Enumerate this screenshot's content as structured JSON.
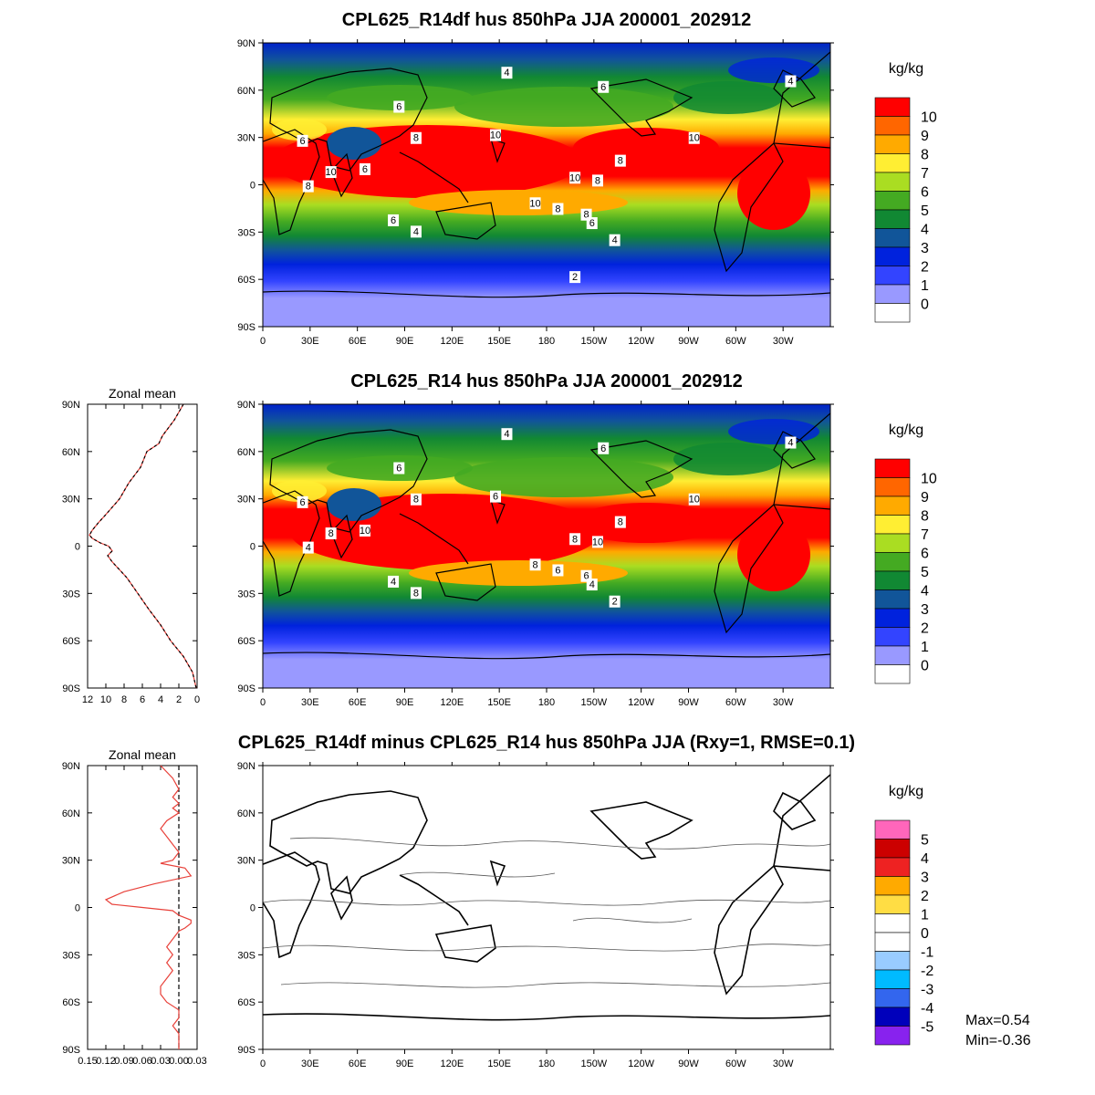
{
  "chart_data": [
    {
      "type": "heatmap",
      "title": "CPL625_R14df hus 850hPa JJA 200001_202912",
      "units": "kg/kg",
      "levels": [
        "10",
        "9",
        "8",
        "7",
        "6",
        "5",
        "4",
        "3",
        "2",
        "1",
        "0"
      ],
      "level_colors": [
        "#ff0000",
        "#ff6600",
        "#ffaa00",
        "#ffee33",
        "#aadd22",
        "#44aa22",
        "#118833",
        "#115599",
        "#0022dd",
        "#3344ff",
        "#9999ff",
        "#ffffff"
      ],
      "x_ticks": [
        "0",
        "30E",
        "60E",
        "90E",
        "120E",
        "150E",
        "180",
        "150W",
        "120W",
        "90W",
        "60W",
        "30W"
      ],
      "y_ticks": [
        "90N",
        "60N",
        "30N",
        "0",
        "30S",
        "60S",
        "90S"
      ],
      "contour_labels": [
        "4",
        "6",
        "4",
        "6",
        "6",
        "8",
        "10",
        "10",
        "8",
        "6",
        "10",
        "8",
        "10",
        "8",
        "8",
        "10",
        "8",
        "6",
        "4",
        "6",
        "4",
        "2"
      ]
    },
    {
      "type": "heatmap",
      "title": "CPL625_R14 hus 850hPa JJA 200001_202912",
      "units": "kg/kg",
      "levels": [
        "10",
        "9",
        "8",
        "7",
        "6",
        "5",
        "4",
        "3",
        "2",
        "1",
        "0"
      ],
      "level_colors": [
        "#ff0000",
        "#ff6600",
        "#ffaa00",
        "#ffee33",
        "#aadd22",
        "#44aa22",
        "#118833",
        "#115599",
        "#0022dd",
        "#3344ff",
        "#9999ff",
        "#ffffff"
      ],
      "x_ticks": [
        "0",
        "30E",
        "60E",
        "90E",
        "120E",
        "150E",
        "180",
        "150W",
        "120W",
        "90W",
        "60W",
        "30W"
      ],
      "y_ticks": [
        "90N",
        "60N",
        "30N",
        "0",
        "30S",
        "60S",
        "90S"
      ],
      "contour_labels": [
        "4",
        "6",
        "4",
        "6",
        "6",
        "8",
        "6",
        "10",
        "8",
        "10",
        "8",
        "10",
        "8",
        "6",
        "4",
        "8",
        "6",
        "4",
        "8",
        "4",
        "2"
      ],
      "zonal_mean": {
        "title": "Zonal mean",
        "x_ticks": [
          "12",
          "10",
          "8",
          "6",
          "4",
          "2",
          "0"
        ],
        "xlim": [
          12,
          0
        ],
        "y_ticks": [
          "90N",
          "60N",
          "30N",
          "0",
          "30S",
          "60S",
          "90S"
        ],
        "lat": [
          90,
          80,
          70,
          65,
          60,
          50,
          40,
          30,
          20,
          15,
          10,
          7,
          5,
          2,
          0,
          -3,
          -6,
          -10,
          -15,
          -20,
          -25,
          -30,
          -40,
          -50,
          -60,
          -70,
          -80,
          -90
        ],
        "value": [
          1.5,
          2.5,
          3.8,
          4.2,
          5.5,
          6.2,
          7.5,
          8.5,
          10.0,
          10.8,
          11.5,
          11.8,
          11.5,
          10.6,
          9.7,
          9.3,
          9.8,
          9.3,
          8.5,
          7.7,
          7.1,
          6.5,
          5.3,
          4.0,
          2.9,
          1.5,
          0.5,
          0.1
        ],
        "series": [
          {
            "name": "CPL625_R14df",
            "color": "#e8413a"
          },
          {
            "name": "CPL625_R14",
            "color": "#000000"
          }
        ]
      }
    },
    {
      "type": "heatmap",
      "title": "CPL625_R14df minus CPL625_R14 hus 850hPa JJA (Rxy=1, RMSE=0.1)",
      "units": "kg/kg",
      "levels": [
        "5",
        "4",
        "3",
        "2",
        "1",
        "0",
        "-1",
        "-2",
        "-3",
        "-4",
        "-5"
      ],
      "level_colors": [
        "#ff66bb",
        "#cc0000",
        "#ee2222",
        "#ffaa00",
        "#ffdd44",
        "#ffffff",
        "#ffffff",
        "#99ccff",
        "#00bbff",
        "#3366ee",
        "#0000bb",
        "#8822ee"
      ],
      "x_ticks": [
        "0",
        "30E",
        "60E",
        "90E",
        "120E",
        "150E",
        "180",
        "150W",
        "120W",
        "90W",
        "60W",
        "30W"
      ],
      "y_ticks": [
        "90N",
        "60N",
        "30N",
        "0",
        "30S",
        "60S",
        "90S"
      ],
      "stats": {
        "max": "Max=0.54",
        "min": "Min=-0.36"
      },
      "zonal_mean": {
        "title": "Zonal mean",
        "x_ticks": [
          "0.15",
          "0.12",
          "0.09",
          "0.06",
          "0.03",
          "0.00",
          "0.03"
        ],
        "xlim": [
          -0.15,
          0.03
        ],
        "y_ticks": [
          "90N",
          "60N",
          "30N",
          "0",
          "30S",
          "60S",
          "90S"
        ],
        "lat": [
          90,
          82,
          75,
          70,
          66,
          63,
          60,
          55,
          50,
          45,
          40,
          35,
          30,
          28,
          25,
          20,
          15,
          10,
          5,
          2,
          0,
          -2,
          -5,
          -8,
          -10,
          -13,
          -15,
          -20,
          -25,
          -30,
          -35,
          -40,
          -45,
          -50,
          -55,
          -60,
          -65,
          -70,
          -75,
          -80,
          -85,
          -90
        ],
        "value": [
          -0.03,
          -0.01,
          0.0,
          -0.01,
          0.0,
          -0.01,
          0.0,
          -0.02,
          -0.03,
          -0.02,
          -0.01,
          0.0,
          -0.01,
          -0.03,
          0.01,
          0.02,
          -0.04,
          -0.09,
          -0.12,
          -0.11,
          -0.06,
          -0.01,
          0.0,
          0.02,
          0.02,
          0.01,
          0.0,
          -0.01,
          -0.02,
          -0.01,
          -0.02,
          -0.01,
          -0.02,
          -0.03,
          -0.03,
          -0.02,
          0.0,
          0.0,
          -0.01,
          0.0,
          0.0,
          0.0
        ],
        "series": [
          {
            "name": "CPL625_R14df minus CPL625_R14",
            "color": "#e8413a"
          }
        ]
      }
    }
  ]
}
